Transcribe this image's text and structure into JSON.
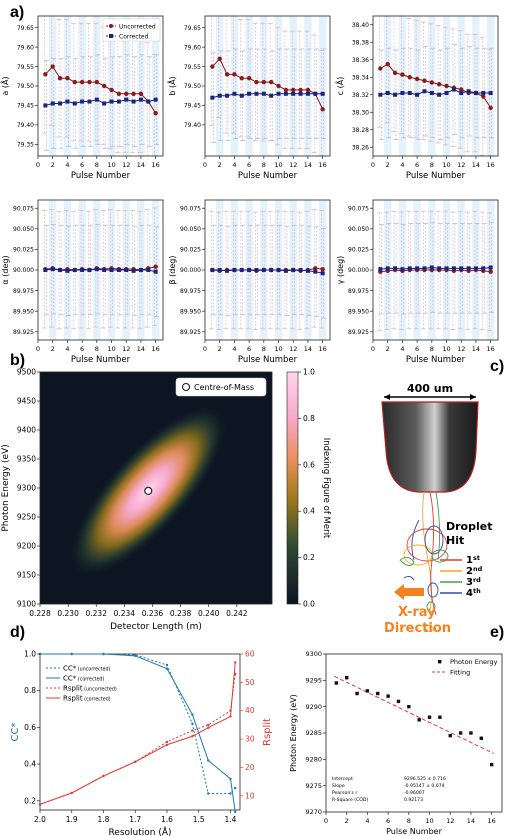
{
  "panel_labels": {
    "a": "a)",
    "b": "b)",
    "c": "c)",
    "d": "d)",
    "e": "e)"
  },
  "chart_data": [
    {
      "id": "a-top-a",
      "type": "line",
      "xlabel": "Pulse Number",
      "ylabel": "a (Å)",
      "ylim": [
        79.32,
        79.68
      ],
      "yticks": [
        "79.35",
        "79.40",
        "79.45",
        "79.50",
        "79.55",
        "79.60",
        "79.65"
      ],
      "ytick_values": [
        79.35,
        79.4,
        79.45,
        79.5,
        79.55,
        79.6,
        79.65
      ],
      "xlim": [
        0,
        17
      ],
      "xticks": [
        0,
        2,
        4,
        6,
        8,
        10,
        12,
        14,
        16
      ],
      "legend": [
        "Uncorrected",
        "Corrected"
      ],
      "series": [
        {
          "name": "Uncorrected",
          "color": "#8b1a1a",
          "x": [
            1,
            2,
            3,
            4,
            5,
            6,
            7,
            8,
            9,
            10,
            11,
            12,
            13,
            14,
            15,
            16
          ],
          "values": [
            79.53,
            79.55,
            79.52,
            79.52,
            79.51,
            79.51,
            79.51,
            79.51,
            79.5,
            79.49,
            79.48,
            79.48,
            79.48,
            79.48,
            79.46,
            79.43
          ]
        },
        {
          "name": "Corrected",
          "color": "#1a237e",
          "x": [
            1,
            2,
            3,
            4,
            5,
            6,
            7,
            8,
            9,
            10,
            11,
            12,
            13,
            14,
            15,
            16
          ],
          "values": [
            79.45,
            79.455,
            79.455,
            79.46,
            79.455,
            79.46,
            79.46,
            79.465,
            79.455,
            79.46,
            79.46,
            79.465,
            79.46,
            79.465,
            79.46,
            79.465
          ]
        }
      ]
    },
    {
      "id": "a-top-b",
      "type": "line",
      "xlabel": "Pulse Number",
      "ylabel": "b (Å)",
      "ylim": [
        79.32,
        79.68
      ],
      "yticks": [
        "79.40",
        "79.45",
        "79.50",
        "79.55",
        "79.60",
        "79.65"
      ],
      "ytick_values": [
        79.4,
        79.45,
        79.5,
        79.55,
        79.6,
        79.65
      ],
      "xlim": [
        0,
        17
      ],
      "xticks": [
        0,
        2,
        4,
        6,
        8,
        10,
        12,
        14,
        16
      ],
      "series": [
        {
          "name": "Uncorrected",
          "color": "#8b1a1a",
          "x": [
            1,
            2,
            3,
            4,
            5,
            6,
            7,
            8,
            9,
            10,
            11,
            12,
            13,
            14,
            15,
            16
          ],
          "values": [
            79.55,
            79.57,
            79.53,
            79.53,
            79.52,
            79.52,
            79.51,
            79.51,
            79.51,
            79.5,
            79.49,
            79.49,
            79.49,
            79.49,
            79.48,
            79.44
          ]
        },
        {
          "name": "Corrected",
          "color": "#1a237e",
          "x": [
            1,
            2,
            3,
            4,
            5,
            6,
            7,
            8,
            9,
            10,
            11,
            12,
            13,
            14,
            15,
            16
          ],
          "values": [
            79.47,
            79.475,
            79.475,
            79.48,
            79.475,
            79.48,
            79.48,
            79.48,
            79.475,
            79.48,
            79.48,
            79.48,
            79.48,
            79.48,
            79.48,
            79.48
          ]
        }
      ]
    },
    {
      "id": "a-top-c",
      "type": "line",
      "xlabel": "Pulse Number",
      "ylabel": "c (Å)",
      "ylim": [
        38.25,
        38.41
      ],
      "yticks": [
        "38.26",
        "38.28",
        "38.30",
        "38.32",
        "38.34",
        "38.36",
        "38.38",
        "38.40"
      ],
      "ytick_values": [
        38.26,
        38.28,
        38.3,
        38.32,
        38.34,
        38.36,
        38.38,
        38.4
      ],
      "xlim": [
        0,
        17
      ],
      "xticks": [
        0,
        2,
        4,
        6,
        8,
        10,
        12,
        14,
        16
      ],
      "series": [
        {
          "name": "Uncorrected",
          "color": "#8b1a1a",
          "x": [
            1,
            2,
            3,
            4,
            5,
            6,
            7,
            8,
            9,
            10,
            11,
            12,
            13,
            14,
            15,
            16
          ],
          "values": [
            38.35,
            38.355,
            38.345,
            38.343,
            38.34,
            38.338,
            38.336,
            38.334,
            38.332,
            38.33,
            38.328,
            38.326,
            38.322,
            38.322,
            38.318,
            38.305
          ]
        },
        {
          "name": "Corrected",
          "color": "#1a237e",
          "x": [
            1,
            2,
            3,
            4,
            5,
            6,
            7,
            8,
            9,
            10,
            11,
            12,
            13,
            14,
            15,
            16
          ],
          "values": [
            38.32,
            38.322,
            38.32,
            38.322,
            38.322,
            38.32,
            38.324,
            38.322,
            38.32,
            38.322,
            38.326,
            38.322,
            38.324,
            38.322,
            38.322,
            38.322
          ]
        }
      ]
    },
    {
      "id": "a-bottom-alpha",
      "type": "line",
      "xlabel": "Pulse Number",
      "ylabel": "α (deg)",
      "ylim": [
        89.915,
        90.085
      ],
      "yticks": [
        "89.925",
        "89.950",
        "89.975",
        "90.000",
        "90.025",
        "90.050",
        "90.075"
      ],
      "ytick_values": [
        89.925,
        89.95,
        89.975,
        90.0,
        90.025,
        90.05,
        90.075
      ],
      "xlim": [
        0,
        17
      ],
      "xticks": [
        0,
        2,
        4,
        6,
        8,
        10,
        12,
        14,
        16
      ],
      "series": [
        {
          "name": "Uncorrected",
          "color": "#8b1a1a",
          "x": [
            1,
            2,
            3,
            4,
            5,
            6,
            7,
            8,
            9,
            10,
            11,
            12,
            13,
            14,
            15,
            16
          ],
          "values": [
            90.001,
            90.002,
            90.0,
            90.001,
            90.0,
            90.001,
            90.0,
            90.002,
            90.001,
            90.002,
            90.001,
            90.001,
            90.001,
            90.0,
            90.002,
            90.004
          ]
        },
        {
          "name": "Corrected",
          "color": "#1a237e",
          "x": [
            1,
            2,
            3,
            4,
            5,
            6,
            7,
            8,
            9,
            10,
            11,
            12,
            13,
            14,
            15,
            16
          ],
          "values": [
            90.0,
            90.001,
            90.0,
            89.999,
            90.0,
            90.0,
            90.0,
            90.001,
            90.0,
            90.0,
            90.0,
            90.0,
            89.999,
            90.0,
            90.0,
            89.998
          ]
        }
      ]
    },
    {
      "id": "a-bottom-beta",
      "type": "line",
      "xlabel": "Pulse Number",
      "ylabel": "β (deg)",
      "ylim": [
        89.915,
        90.085
      ],
      "yticks": [
        "89.925",
        "89.950",
        "89.975",
        "90.000",
        "90.025",
        "90.050",
        "90.075"
      ],
      "ytick_values": [
        89.925,
        89.95,
        89.975,
        90.0,
        90.025,
        90.05,
        90.075
      ],
      "xlim": [
        0,
        17
      ],
      "xticks": [
        0,
        2,
        4,
        6,
        8,
        10,
        12,
        14,
        16
      ],
      "series": [
        {
          "name": "Uncorrected",
          "color": "#8b1a1a",
          "x": [
            1,
            2,
            3,
            4,
            5,
            6,
            7,
            8,
            9,
            10,
            11,
            12,
            13,
            14,
            15,
            16
          ],
          "values": [
            90.0,
            89.999,
            90.0,
            90.0,
            90.0,
            90.0,
            89.999,
            90.0,
            90.0,
            90.0,
            90.0,
            90.0,
            89.999,
            90.0,
            90.002,
            90.001
          ]
        },
        {
          "name": "Corrected",
          "color": "#1a237e",
          "x": [
            1,
            2,
            3,
            4,
            5,
            6,
            7,
            8,
            9,
            10,
            11,
            12,
            13,
            14,
            15,
            16
          ],
          "values": [
            90.0,
            90.0,
            89.999,
            90.0,
            90.0,
            90.0,
            90.0,
            90.0,
            90.0,
            90.0,
            89.999,
            90.0,
            90.0,
            89.999,
            89.998,
            89.996
          ]
        }
      ]
    },
    {
      "id": "a-bottom-gamma",
      "type": "line",
      "xlabel": "Pulse Number",
      "ylabel": "γ (deg)",
      "ylim": [
        89.915,
        90.085
      ],
      "yticks": [
        "89.925",
        "89.950",
        "89.975",
        "90.000",
        "90.025",
        "90.050",
        "90.075"
      ],
      "ytick_values": [
        89.925,
        89.95,
        89.975,
        90.0,
        90.025,
        90.05,
        90.075
      ],
      "xlim": [
        0,
        17
      ],
      "xticks": [
        0,
        2,
        4,
        6,
        8,
        10,
        12,
        14,
        16
      ],
      "series": [
        {
          "name": "Uncorrected",
          "color": "#8b1a1a",
          "x": [
            1,
            2,
            3,
            4,
            5,
            6,
            7,
            8,
            9,
            10,
            11,
            12,
            13,
            14,
            15,
            16
          ],
          "values": [
            89.998,
            89.999,
            90.0,
            89.999,
            90.0,
            90.0,
            90.0,
            90.0,
            90.0,
            90.0,
            89.999,
            90.0,
            89.999,
            90.0,
            89.999,
            89.998
          ]
        },
        {
          "name": "Corrected",
          "color": "#1a237e",
          "x": [
            1,
            2,
            3,
            4,
            5,
            6,
            7,
            8,
            9,
            10,
            11,
            12,
            13,
            14,
            15,
            16
          ],
          "values": [
            90.001,
            90.002,
            90.002,
            90.001,
            90.002,
            90.002,
            90.002,
            90.003,
            90.002,
            90.002,
            90.002,
            90.002,
            90.002,
            90.002,
            90.002,
            90.003
          ]
        }
      ]
    },
    {
      "id": "b-heatmap",
      "type": "heatmap",
      "xlabel": "Detector Length (m)",
      "ylabel": "Photon Energy (eV)",
      "xlim": [
        0.228,
        0.2445
      ],
      "ylim": [
        9100,
        9500
      ],
      "xticks": [
        "0.228",
        "0.230",
        "0.232",
        "0.234",
        "0.236",
        "0.238",
        "0.240",
        "0.242"
      ],
      "xtick_values": [
        0.228,
        0.23,
        0.232,
        0.234,
        0.236,
        0.238,
        0.24,
        0.242
      ],
      "yticks": [
        "9100",
        "9150",
        "9200",
        "9250",
        "9300",
        "9350",
        "9400",
        "9450",
        "9500"
      ],
      "ytick_values": [
        9100,
        9150,
        9200,
        9250,
        9300,
        9350,
        9400,
        9450,
        9500
      ],
      "colorbar_label": "Indexing Figure of Merit",
      "colorbar_ticks": [
        "0.0",
        "0.2",
        "0.4",
        "0.6",
        "0.8",
        "1.0"
      ],
      "colorbar_tick_values": [
        0,
        0.2,
        0.4,
        0.6,
        0.8,
        1.0
      ],
      "centre_of_mass": {
        "x": 0.2357,
        "y": 9295
      },
      "legend": [
        "Centre-of-Mass"
      ]
    },
    {
      "id": "d-cc-rsplit",
      "type": "line",
      "xlabel": "Resolution (Å)",
      "ylabel": "CC*",
      "ylabel_right": "Rsplit",
      "xlim": [
        2.0,
        1.37
      ],
      "ylim": [
        0.15,
        1.0
      ],
      "ylim_right": [
        5,
        60
      ],
      "xticks": [
        "2.0",
        "1.9",
        "1.8",
        "1.7",
        "1.6",
        "1.5",
        "1.4"
      ],
      "xtick_values": [
        2.0,
        1.9,
        1.8,
        1.7,
        1.6,
        1.5,
        1.4
      ],
      "yticks": [
        "0.2",
        "0.4",
        "0.6",
        "0.8",
        "1.0"
      ],
      "ytick_values": [
        0.2,
        0.4,
        0.6,
        0.8,
        1.0
      ],
      "yticks_right": [
        "10",
        "20",
        "30",
        "40",
        "50",
        "60"
      ],
      "ytick_values_right": [
        10,
        20,
        30,
        40,
        50,
        60
      ],
      "legend": [
        "CC* (uncorrected)",
        "CC* (corrected)",
        "Rsplit (uncorrected)",
        "Rsplit (corrected)"
      ],
      "legend_main": [
        "CC*",
        "CC*",
        "Rsplit",
        "Rsplit"
      ],
      "legend_sub": [
        "(uncorrected)",
        "(corrected)",
        "(uncorrected)",
        "(corrected)"
      ],
      "series": [
        {
          "name": "CC* (uncorrected)",
          "axis": "left",
          "style": "dotted",
          "color": "#1f77b4",
          "x": [
            2.0,
            1.9,
            1.8,
            1.7,
            1.6,
            1.52,
            1.47,
            1.4,
            1.385
          ],
          "values": [
            1.0,
            1.0,
            1.0,
            0.995,
            0.94,
            0.62,
            0.24,
            0.24,
            0.27
          ]
        },
        {
          "name": "CC* (corrected)",
          "axis": "left",
          "style": "solid",
          "color": "#1f77b4",
          "x": [
            2.0,
            1.9,
            1.8,
            1.7,
            1.6,
            1.52,
            1.47,
            1.4,
            1.385
          ],
          "values": [
            1.0,
            1.0,
            1.0,
            0.99,
            0.92,
            0.67,
            0.42,
            0.32,
            0.14
          ]
        },
        {
          "name": "Rsplit (uncorrected)",
          "axis": "right",
          "style": "dotted",
          "color": "#e53935",
          "x": [
            2.0,
            1.9,
            1.8,
            1.7,
            1.6,
            1.52,
            1.47,
            1.4,
            1.385
          ],
          "values": [
            7,
            11,
            17,
            22,
            29,
            33,
            35,
            40,
            53
          ]
        },
        {
          "name": "Rsplit (corrected)",
          "axis": "right",
          "style": "solid",
          "color": "#e53935",
          "x": [
            2.0,
            1.9,
            1.8,
            1.7,
            1.6,
            1.52,
            1.47,
            1.4,
            1.385
          ],
          "values": [
            7,
            11,
            17,
            22,
            28,
            31,
            34,
            38,
            57
          ]
        }
      ]
    },
    {
      "id": "e-photon-energy",
      "type": "scatter",
      "xlabel": "Pulse Number",
      "ylabel": "Photon Energy (eV)",
      "xlim": [
        0,
        17
      ],
      "ylim": [
        9270,
        9300
      ],
      "xticks": [
        "0",
        "2",
        "4",
        "6",
        "8",
        "10",
        "12",
        "14",
        "16"
      ],
      "xtick_values": [
        0,
        2,
        4,
        6,
        8,
        10,
        12,
        14,
        16
      ],
      "yticks": [
        "9270",
        "9275",
        "9280",
        "9285",
        "9290",
        "9295",
        "9300"
      ],
      "ytick_values": [
        9270,
        9275,
        9280,
        9285,
        9290,
        9295,
        9300
      ],
      "legend": [
        "Photon Energy",
        "Fitting"
      ],
      "series": [
        {
          "name": "Photon Energy",
          "color": "#111111",
          "x": [
            1,
            2,
            3,
            4,
            5,
            6,
            7,
            8,
            9,
            10,
            11,
            12,
            13,
            14,
            15,
            16
          ],
          "values": [
            9294.5,
            9295.5,
            9292.5,
            9293,
            9292.5,
            9292,
            9291,
            9290,
            9287.5,
            9288,
            9288,
            9284.5,
            9285,
            9285,
            9284,
            9279
          ]
        }
      ],
      "fit": {
        "name": "Fitting",
        "color": "#e53935",
        "intercept": 9296.525,
        "slope": -0.95147
      },
      "stats": {
        "labels": [
          "Intercept",
          "Slope",
          "Pearson's r",
          "R-Square (COD)"
        ],
        "values": [
          "9296.525 ± 0.716",
          "-0.95147 ± 0.074",
          "-0.96007",
          "0.92173"
        ]
      }
    }
  ],
  "panel_c": {
    "scale_text": "400 um",
    "droplet_hit": "Droplet Hit",
    "hits": [
      {
        "num": "1",
        "sup": "st",
        "color": "#e53935"
      },
      {
        "num": "2",
        "sup": "nd",
        "color": "#f9a825"
      },
      {
        "num": "3",
        "sup": "rd",
        "color": "#43a047"
      },
      {
        "num": "4",
        "sup": "th",
        "color": "#3949ab"
      }
    ],
    "xray_text": "X-ray Direction",
    "xray_color": "#f5821f"
  }
}
